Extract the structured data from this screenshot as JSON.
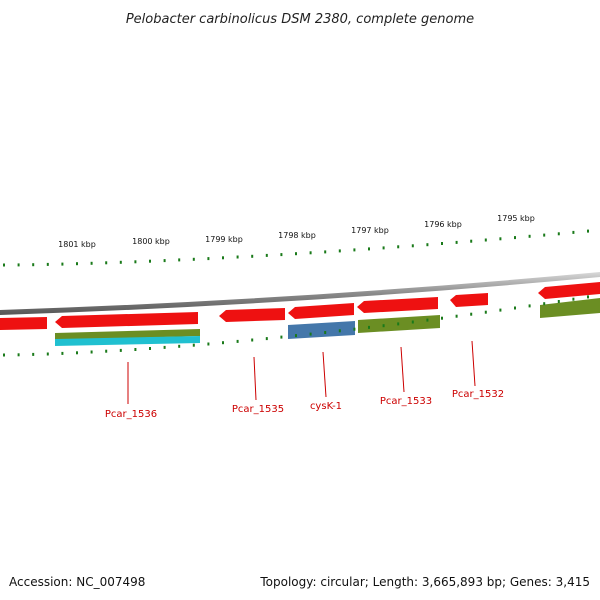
{
  "title": "Pelobacter carbinolicus DSM 2380, complete genome",
  "scale_labels": [
    "1801 kbp",
    "1800 kbp",
    "1799 kbp",
    "1798 kbp",
    "1797 kbp",
    "1796 kbp",
    "1795 kbp"
  ],
  "gene_labels": [
    "Pcar_1536",
    "Pcar_1535",
    "cysK-1",
    "Pcar_1533",
    "Pcar_1532"
  ],
  "footer": {
    "accession": "Accession: NC_007498",
    "summary": "Topology: circular; Length: 3,665,893 bp; Genes: 3,415"
  },
  "colors": {
    "forward_cds": "#ee1111",
    "reverse_cds": "#6b8e23",
    "rna": "#20c0d0",
    "highlight": "#4477aa",
    "backbone": "#777777",
    "ticks": "#1a7a1a",
    "label": "#cc0000"
  }
}
